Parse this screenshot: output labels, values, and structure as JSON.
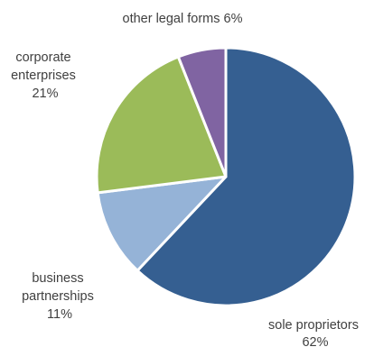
{
  "chart_data": {
    "type": "pie",
    "title": "",
    "start_angle_deg": 0,
    "direction": "clockwise",
    "slices": [
      {
        "label": "sole proprietors",
        "value": 62,
        "percent_label": "62%",
        "color": "#355F91"
      },
      {
        "label": "business partnerships",
        "value": 11,
        "percent_label": "11%",
        "color": "#95B3D7"
      },
      {
        "label": "corporate enterprises",
        "value": 21,
        "percent_label": "21%",
        "color": "#9BBB59"
      },
      {
        "label": "other legal forms",
        "value": 6,
        "percent_label": "6%",
        "color": "#8064A2"
      }
    ],
    "label_lines": [
      [
        "sole proprietors",
        "62%"
      ],
      [
        "business",
        "partnerships",
        "11%"
      ],
      [
        "corporate",
        "enterprises",
        "21%"
      ],
      [
        "other legal forms 6%"
      ]
    ]
  }
}
